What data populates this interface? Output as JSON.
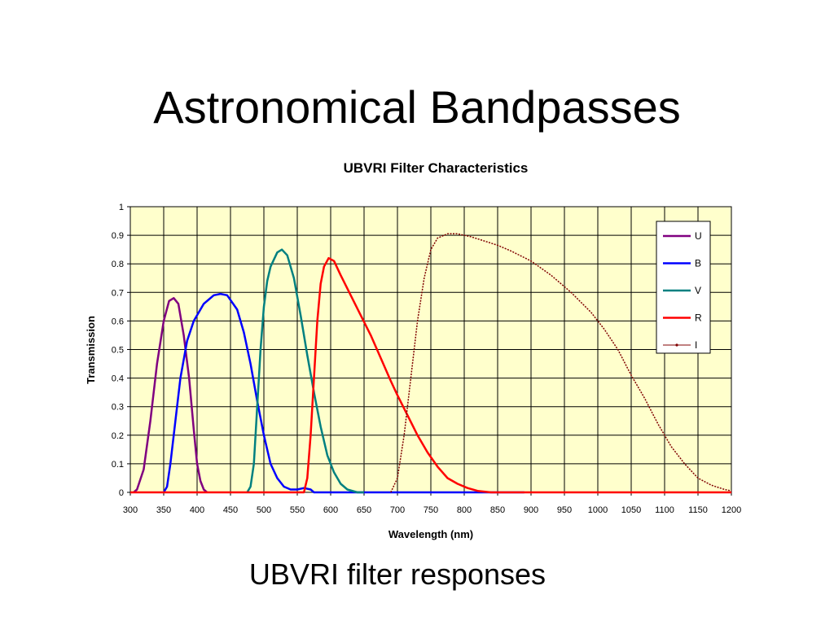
{
  "slide": {
    "title": "Astronomical Bandpasses",
    "caption": "UBVRI filter responses"
  },
  "chart_data": {
    "type": "line",
    "title": "UBVRI Filter Characteristics",
    "xlabel": "Wavelength (nm)",
    "ylabel": "Transmission",
    "xlim": [
      300,
      1200
    ],
    "ylim": [
      0,
      1
    ],
    "x_ticks": [
      "300",
      "350",
      "400",
      "450",
      "500",
      "550",
      "600",
      "650",
      "700",
      "750",
      "800",
      "850",
      "900",
      "950",
      "1000",
      "1050",
      "1100",
      "1150",
      "1200"
    ],
    "y_ticks": [
      "0",
      "0.1",
      "0.2",
      "0.3",
      "0.4",
      "0.5",
      "0.6",
      "0.7",
      "0.8",
      "0.9",
      "1"
    ],
    "grid": true,
    "plot_background": "#ffffcc",
    "legend_position": "top-right",
    "series": [
      {
        "name": "U",
        "color": "#800080",
        "points": [
          [
            305,
            0
          ],
          [
            310,
            0.01
          ],
          [
            320,
            0.08
          ],
          [
            330,
            0.25
          ],
          [
            340,
            0.45
          ],
          [
            350,
            0.6
          ],
          [
            358,
            0.67
          ],
          [
            365,
            0.68
          ],
          [
            372,
            0.66
          ],
          [
            380,
            0.55
          ],
          [
            388,
            0.4
          ],
          [
            395,
            0.22
          ],
          [
            400,
            0.1
          ],
          [
            405,
            0.04
          ],
          [
            410,
            0.01
          ],
          [
            415,
            0
          ]
        ]
      },
      {
        "name": "B",
        "color": "#0000ff",
        "points": [
          [
            350,
            0
          ],
          [
            355,
            0.02
          ],
          [
            360,
            0.1
          ],
          [
            365,
            0.2
          ],
          [
            375,
            0.4
          ],
          [
            385,
            0.53
          ],
          [
            395,
            0.6
          ],
          [
            410,
            0.66
          ],
          [
            425,
            0.69
          ],
          [
            435,
            0.695
          ],
          [
            445,
            0.69
          ],
          [
            460,
            0.64
          ],
          [
            470,
            0.56
          ],
          [
            480,
            0.45
          ],
          [
            490,
            0.32
          ],
          [
            500,
            0.2
          ],
          [
            510,
            0.1
          ],
          [
            520,
            0.05
          ],
          [
            530,
            0.02
          ],
          [
            540,
            0.01
          ],
          [
            550,
            0.01
          ],
          [
            560,
            0.015
          ],
          [
            570,
            0.01
          ],
          [
            575,
            0
          ],
          [
            700,
            0
          ],
          [
            750,
            0
          ],
          [
            800,
            0
          ],
          [
            850,
            0
          ],
          [
            890,
            0
          ]
        ]
      },
      {
        "name": "V",
        "color": "#008080",
        "points": [
          [
            475,
            0
          ],
          [
            480,
            0.02
          ],
          [
            485,
            0.1
          ],
          [
            490,
            0.3
          ],
          [
            495,
            0.5
          ],
          [
            500,
            0.65
          ],
          [
            505,
            0.74
          ],
          [
            510,
            0.79
          ],
          [
            520,
            0.84
          ],
          [
            527,
            0.85
          ],
          [
            535,
            0.83
          ],
          [
            545,
            0.75
          ],
          [
            555,
            0.62
          ],
          [
            565,
            0.48
          ],
          [
            575,
            0.35
          ],
          [
            585,
            0.23
          ],
          [
            595,
            0.13
          ],
          [
            605,
            0.07
          ],
          [
            615,
            0.03
          ],
          [
            625,
            0.01
          ],
          [
            640,
            0
          ],
          [
            650,
            0
          ]
        ]
      },
      {
        "name": "R",
        "color": "#ff0000",
        "points": [
          [
            300,
            0
          ],
          [
            560,
            0
          ],
          [
            565,
            0.05
          ],
          [
            570,
            0.2
          ],
          [
            575,
            0.4
          ],
          [
            580,
            0.6
          ],
          [
            585,
            0.73
          ],
          [
            590,
            0.79
          ],
          [
            597,
            0.82
          ],
          [
            605,
            0.81
          ],
          [
            615,
            0.76
          ],
          [
            630,
            0.69
          ],
          [
            645,
            0.62
          ],
          [
            660,
            0.55
          ],
          [
            675,
            0.47
          ],
          [
            690,
            0.39
          ],
          [
            700,
            0.34
          ],
          [
            715,
            0.27
          ],
          [
            730,
            0.2
          ],
          [
            745,
            0.14
          ],
          [
            760,
            0.09
          ],
          [
            775,
            0.05
          ],
          [
            790,
            0.03
          ],
          [
            805,
            0.015
          ],
          [
            820,
            0.005
          ],
          [
            840,
            0
          ],
          [
            900,
            0
          ],
          [
            1000,
            0
          ],
          [
            1100,
            0
          ],
          [
            1200,
            0
          ]
        ]
      },
      {
        "name": "I",
        "color": "#800000",
        "points": [
          [
            690,
            0
          ],
          [
            700,
            0.05
          ],
          [
            710,
            0.2
          ],
          [
            720,
            0.4
          ],
          [
            730,
            0.6
          ],
          [
            740,
            0.75
          ],
          [
            750,
            0.85
          ],
          [
            760,
            0.89
          ],
          [
            775,
            0.905
          ],
          [
            790,
            0.905
          ],
          [
            810,
            0.895
          ],
          [
            830,
            0.88
          ],
          [
            850,
            0.865
          ],
          [
            870,
            0.845
          ],
          [
            900,
            0.81
          ],
          [
            930,
            0.76
          ],
          [
            960,
            0.7
          ],
          [
            990,
            0.63
          ],
          [
            1010,
            0.57
          ],
          [
            1030,
            0.5
          ],
          [
            1050,
            0.41
          ],
          [
            1070,
            0.33
          ],
          [
            1090,
            0.24
          ],
          [
            1110,
            0.16
          ],
          [
            1130,
            0.1
          ],
          [
            1150,
            0.05
          ],
          [
            1170,
            0.025
          ],
          [
            1190,
            0.01
          ],
          [
            1200,
            0.005
          ]
        ]
      }
    ]
  }
}
